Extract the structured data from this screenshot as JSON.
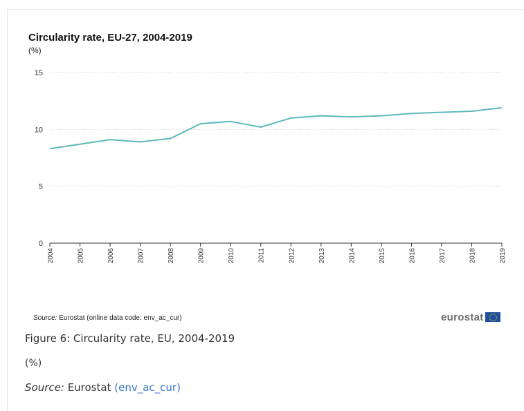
{
  "chart_data": {
    "type": "line",
    "title": "Circularity rate, EU-27, 2004-2019",
    "ylabel": "(%)",
    "xlabel": "",
    "x": [
      "2004",
      "2005",
      "2006",
      "2007",
      "2008",
      "2009",
      "2010",
      "2011",
      "2012",
      "2013",
      "2014",
      "2015",
      "2016",
      "2017",
      "2018",
      "2019"
    ],
    "series": [
      {
        "values": [
          8.3,
          8.7,
          9.1,
          8.9,
          9.2,
          10.5,
          10.7,
          10.2,
          11.0,
          11.2,
          11.1,
          11.2,
          11.4,
          11.5,
          11.6,
          11.9
        ]
      }
    ],
    "yticks": [
      0,
      5,
      10,
      15
    ],
    "ylim": [
      0,
      15
    ],
    "grid": true,
    "line_color": "#5bb8bb"
  },
  "source": {
    "label": "Source:",
    "text": "Eurostat (online data code: env_ac_cur)"
  },
  "logo": {
    "text": "eurostat"
  },
  "caption": {
    "figure": "Figure 6: Circularity rate, EU, 2004-2019",
    "unit": "(%)",
    "source_label": "Source:",
    "source_text": "Eurostat",
    "source_link": "(env_ac_cur)"
  }
}
